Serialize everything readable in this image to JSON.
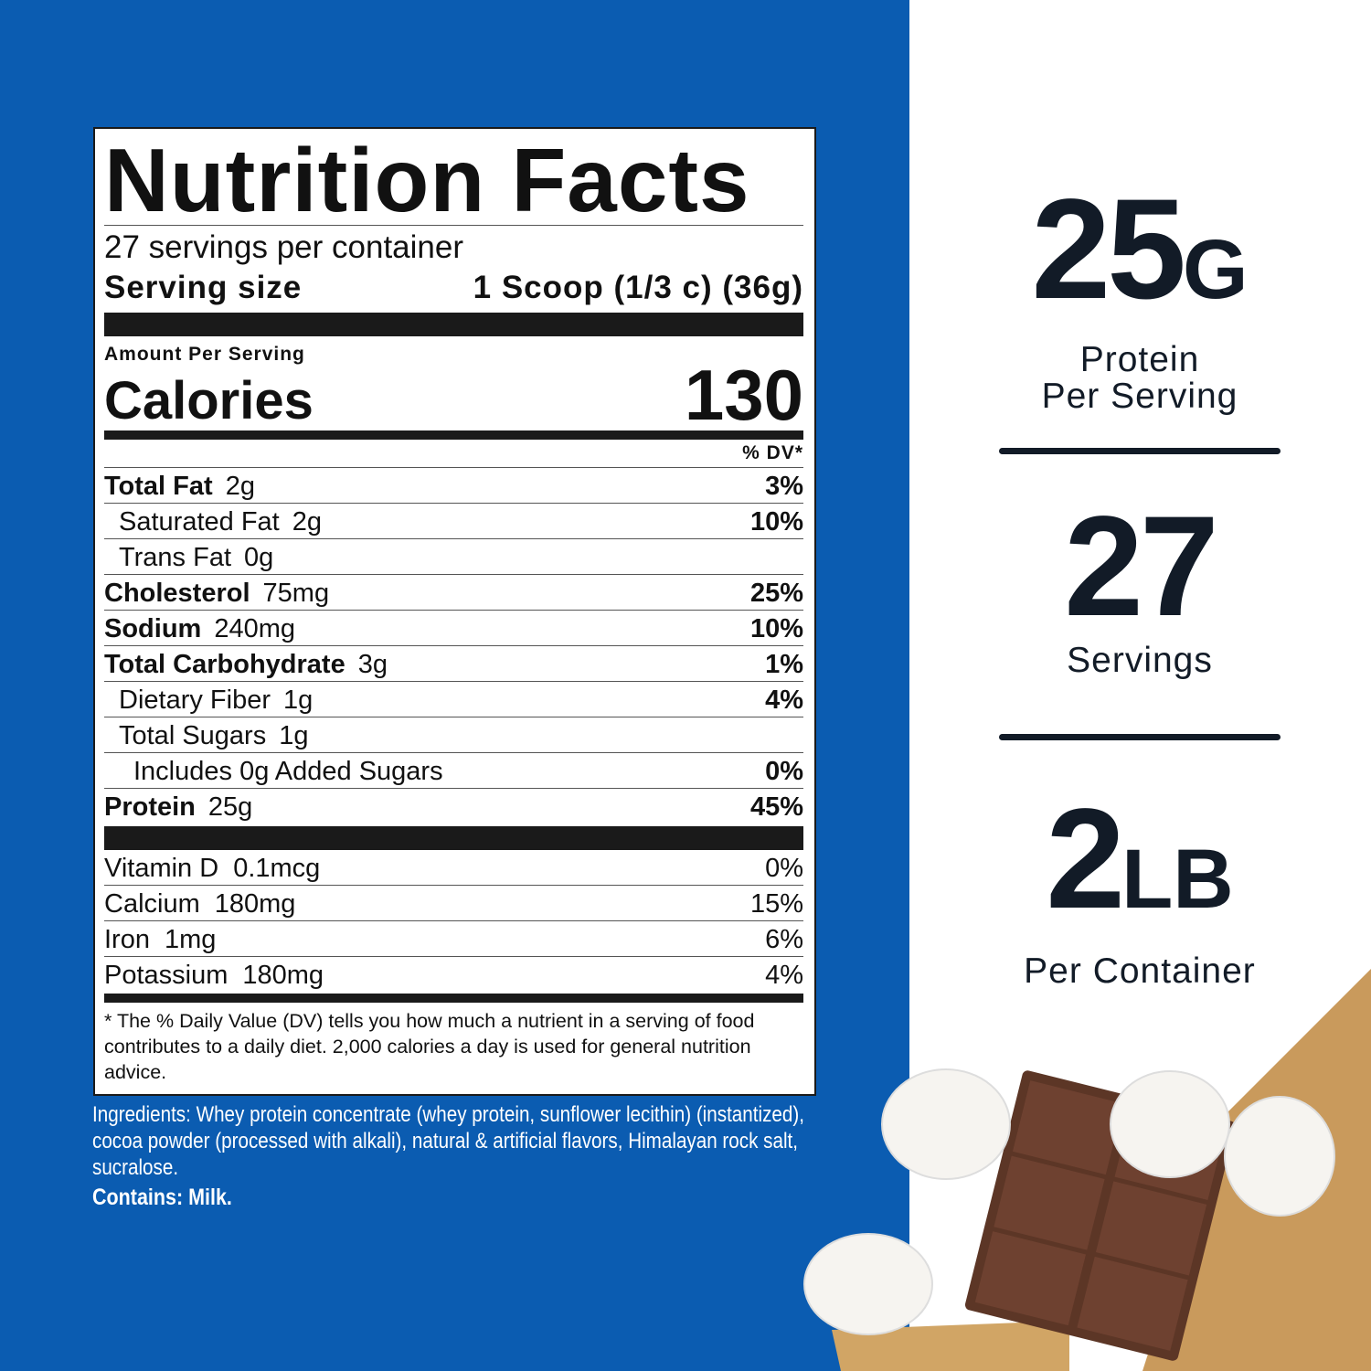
{
  "label": {
    "title": "Nutrition Facts",
    "servings": "27 servings per container",
    "serving_size_label": "Serving size",
    "serving_size_value": "1 Scoop  (1/3 c) (36g)",
    "amount_per_serving": "Amount Per Serving",
    "calories_label": "Calories",
    "calories_value": "130",
    "dv_header": "% DV*",
    "nutrients": [
      {
        "name": "Total Fat",
        "amount": "2g",
        "dv": "3%"
      },
      {
        "name": "Saturated Fat",
        "amount": "2g",
        "dv": "10%"
      },
      {
        "name": "Trans Fat",
        "amount": "0g",
        "dv": ""
      },
      {
        "name": "Cholesterol",
        "amount": "75mg",
        "dv": "25%"
      },
      {
        "name": "Sodium",
        "amount": "240mg",
        "dv": "10%"
      },
      {
        "name": "Total Carbohydrate",
        "amount": "3g",
        "dv": "1%"
      },
      {
        "name": "Dietary Fiber",
        "amount": "1g",
        "dv": "4%"
      },
      {
        "name": "Total Sugars",
        "amount": "1g",
        "dv": ""
      },
      {
        "name": "Includes 0g Added Sugars",
        "amount": "",
        "dv": "0%"
      },
      {
        "name": "Protein",
        "amount": "25g",
        "dv": "45%"
      }
    ],
    "vitamins": [
      {
        "name": "Vitamin D",
        "amount": "0.1mcg",
        "dv": "0%"
      },
      {
        "name": "Calcium",
        "amount": "180mg",
        "dv": "15%"
      },
      {
        "name": "Iron",
        "amount": "1mg",
        "dv": "6%"
      },
      {
        "name": "Potassium",
        "amount": "180mg",
        "dv": "4%"
      }
    ],
    "footnote": "* The % Daily Value (DV) tells you how much a nutrient in a serving of food contributes to a daily diet. 2,000 calories a day is used for general nutrition advice."
  },
  "ingredients": "Ingredients: Whey protein concentrate (whey protein, sunflower lecithin) (instantized), cocoa powder (processed with alkali), natural & artificial flavors, Himalayan rock salt, sucralose.",
  "contains": "Contains: Milk.",
  "stats": [
    {
      "value": "25",
      "unit": "G",
      "caption1": "Protein",
      "caption2": "Per Serving"
    },
    {
      "value": "27",
      "unit": "",
      "caption1": "Servings",
      "caption2": ""
    },
    {
      "value": "2",
      "unit": "LB",
      "caption1": "Per Container",
      "caption2": ""
    }
  ],
  "colors": {
    "panel_blue": "#0b5cb1",
    "text_dark": "#121b27"
  }
}
